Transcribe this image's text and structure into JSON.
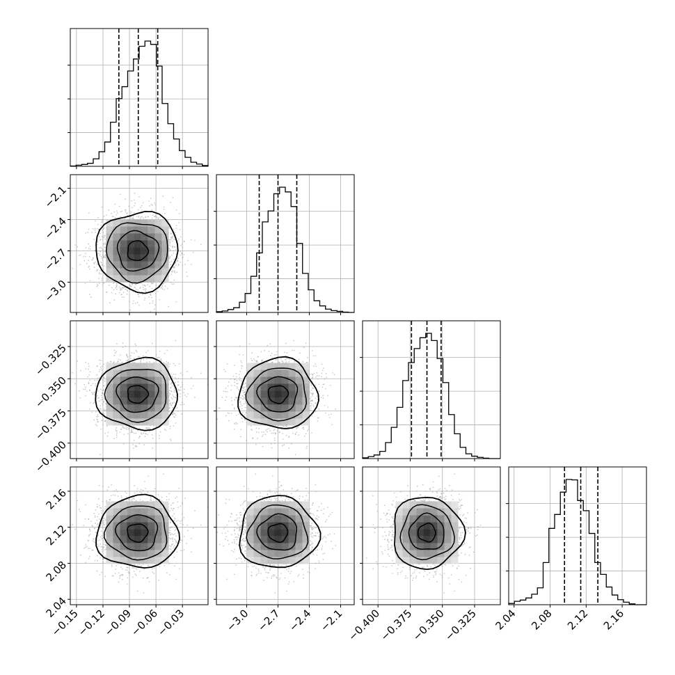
{
  "chart_data": {
    "type": "corner",
    "parameters": 4,
    "quantiles": [
      0.16,
      0.5,
      0.84
    ],
    "grid": true,
    "params": [
      {
        "range": [
          -0.157,
          -0.001
        ],
        "ticks": [
          -0.15,
          -0.12,
          -0.09,
          -0.06,
          -0.03
        ],
        "tick_labels": [
          "−0.15",
          "−0.12",
          "−0.09",
          "−0.06",
          "−0.03"
        ],
        "mean": -0.081,
        "sigma": 0.022,
        "quantile_values": [
          -0.102,
          -0.08,
          -0.058
        ],
        "histogram": [
          1,
          3,
          5,
          8,
          20,
          39,
          65,
          118,
          181,
          213,
          255,
          287,
          321,
          335,
          326,
          268,
          168,
          114,
          73,
          42,
          24,
          11,
          6,
          2
        ]
      },
      {
        "range": [
          -3.29,
          -1.97
        ],
        "ticks": [
          -3.0,
          -2.7,
          -2.4,
          -2.1
        ],
        "tick_labels": [
          "−3.0",
          "−2.7",
          "−2.4",
          "−2.1"
        ],
        "mean": -2.7,
        "sigma": 0.18,
        "quantile_values": [
          -2.88,
          -2.7,
          -2.52
        ],
        "histogram": [
          2,
          4,
          8,
          13,
          28,
          52,
          99,
          163,
          248,
          278,
          325,
          343,
          330,
          290,
          189,
          107,
          62,
          32,
          18,
          9,
          5,
          3,
          1,
          0
        ]
      },
      {
        "range": [
          -0.412,
          -0.305
        ],
        "ticks": [
          -0.4,
          -0.375,
          -0.35,
          -0.325
        ],
        "tick_labels": [
          "−0.400",
          "−0.375",
          "−0.350",
          "−0.325"
        ],
        "mean": -0.362,
        "sigma": 0.013,
        "quantile_values": [
          -0.374,
          -0.362,
          -0.351
        ],
        "histogram": [
          2,
          5,
          9,
          18,
          40,
          78,
          128,
          195,
          240,
          275,
          302,
          313,
          295,
          250,
          190,
          110,
          62,
          28,
          12,
          6,
          3,
          1,
          0,
          0
        ]
      },
      {
        "range": [
          2.034,
          2.187
        ],
        "ticks": [
          2.04,
          2.08,
          2.12,
          2.16
        ],
        "tick_labels": [
          "2.04",
          "2.08",
          "2.12",
          "2.16"
        ],
        "mean": 2.114,
        "sigma": 0.019,
        "quantile_values": [
          2.096,
          2.114,
          2.133
        ],
        "histogram": [
          3,
          8,
          11,
          16,
          25,
          40,
          100,
          181,
          214,
          267,
          297,
          296,
          247,
          223,
          169,
          100,
          72,
          42,
          23,
          12,
          6,
          2,
          0,
          0
        ]
      }
    ],
    "scatter_samples": 2500,
    "contour_levels_sigma": [
      0.5,
      1.0,
      1.5,
      2.0
    ],
    "colors": {
      "hist": "#000000",
      "contour": "#000000",
      "points": "#a8a8a8",
      "grid": "#b0b0b0"
    }
  }
}
